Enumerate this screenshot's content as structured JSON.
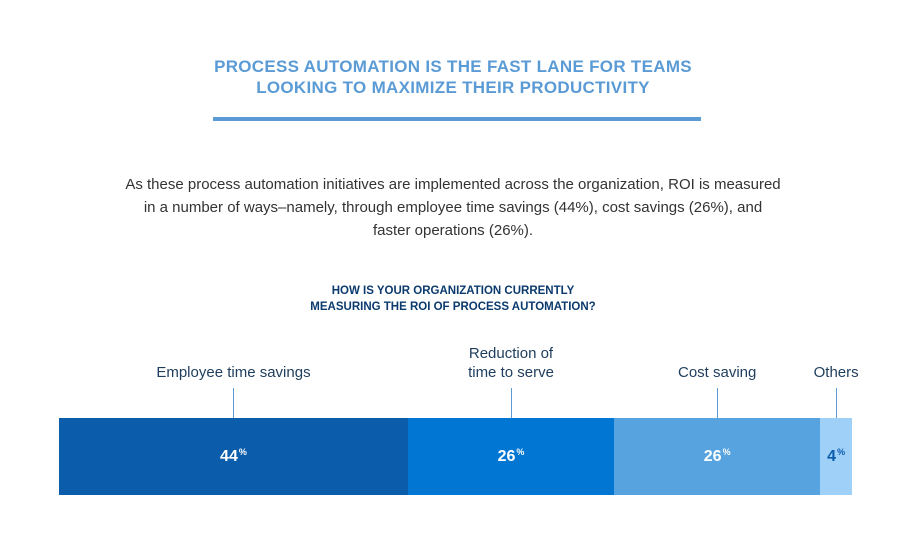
{
  "header": {
    "title_lines": [
      "PROCESS AUTOMATION IS THE FAST LANE FOR TEAMS",
      "LOOKING TO MAXIMIZE THEIR PRODUCTIVITY"
    ],
    "body_lines": [
      "As these process automation initiatives are implemented across the organization, ROI is measured",
      "in a number of ways–namely, through employee time savings (44%), cost savings (26%), and",
      "faster operations (26%)."
    ]
  },
  "chart_data": {
    "type": "bar",
    "orientation": "stacked-horizontal",
    "title_lines": [
      "HOW IS YOUR ORGANIZATION CURRENTLY",
      "MEASURING THE ROI OF PROCESS AUTOMATION?"
    ],
    "unit": "%",
    "categories": [
      {
        "label_lines": [
          "Employee time savings"
        ],
        "value": 44,
        "color": "#0b5cab",
        "text_color": "#ffffff"
      },
      {
        "label_lines": [
          "Reduction of",
          "time to serve"
        ],
        "value": 26,
        "color": "#0176d3",
        "text_color": "#ffffff"
      },
      {
        "label_lines": [
          "Cost saving"
        ],
        "value": 26,
        "color": "#57a3e0",
        "text_color": "#ffffff"
      },
      {
        "label_lines": [
          "Others"
        ],
        "value": 4,
        "color": "#9fd0f8",
        "text_color": "#0b5cab"
      }
    ]
  }
}
